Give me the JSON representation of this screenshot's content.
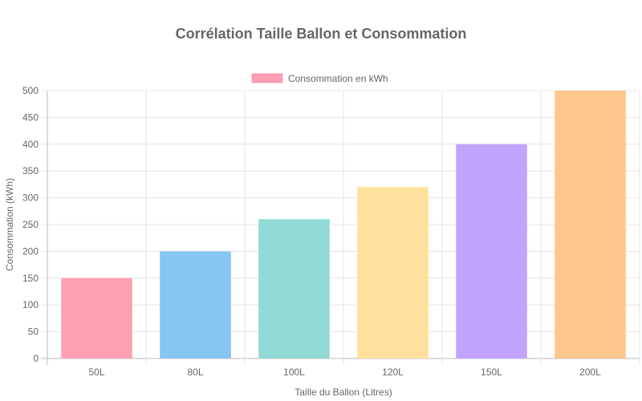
{
  "chart_data": {
    "type": "bar",
    "title": "Corrélation Taille Ballon et Consommation",
    "categories": [
      "50L",
      "80L",
      "100L",
      "120L",
      "150L",
      "200L"
    ],
    "series": [
      {
        "name": "Consommation en kWh",
        "values": [
          150,
          200,
          260,
          320,
          400,
          500
        ],
        "colors": [
          "#FF9FB4",
          "#87C6F3",
          "#91D9D4",
          "#FFE19D",
          "#C2A4FF",
          "#FFC68E"
        ],
        "border_colors": [
          "#FF6384",
          "#36A2EB",
          "#4BC0C0",
          "#FFCE56",
          "#9966FF",
          "#FF9F40"
        ]
      }
    ],
    "xlabel": "Taille du Ballon (Litres)",
    "ylabel": "Consommation (kWh)",
    "ylim": [
      0,
      500
    ],
    "yticks": [
      0,
      50,
      100,
      150,
      200,
      250,
      300,
      350,
      400,
      450,
      500
    ],
    "grid": true,
    "legend": {
      "position": "top",
      "swatch_color": "#FF9FB4",
      "swatch_border": "#FF6384"
    }
  }
}
